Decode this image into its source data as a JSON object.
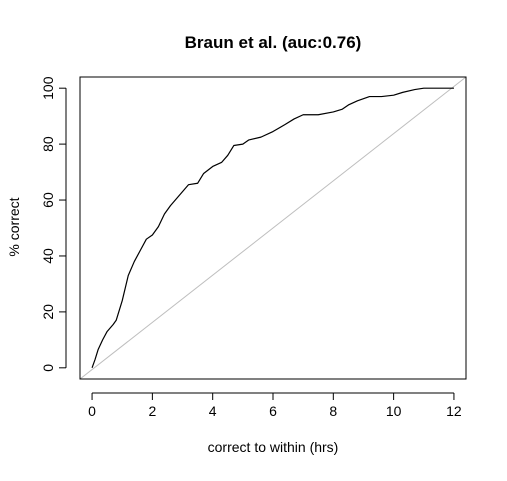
{
  "chart_data": {
    "type": "line",
    "title": "Braun et al. (auc:0.76)",
    "xlabel": "correct to within (hrs)",
    "ylabel": "% correct",
    "xlim": [
      -0.4,
      12.4
    ],
    "ylim": [
      -4,
      104
    ],
    "xticks": [
      0,
      2,
      4,
      6,
      8,
      10,
      12
    ],
    "yticks": [
      0,
      20,
      40,
      60,
      80,
      100
    ],
    "grid": false,
    "series": [
      {
        "style": "solid",
        "color": "#000000",
        "points": [
          [
            0.0,
            0.0
          ],
          [
            0.1,
            3.0
          ],
          [
            0.2,
            6.5
          ],
          [
            0.35,
            10.0
          ],
          [
            0.5,
            13.0
          ],
          [
            0.7,
            15.5
          ],
          [
            0.8,
            17.0
          ],
          [
            1.0,
            24.0
          ],
          [
            1.2,
            33.0
          ],
          [
            1.4,
            38.0
          ],
          [
            1.6,
            42.0
          ],
          [
            1.8,
            46.0
          ],
          [
            2.0,
            47.5
          ],
          [
            2.2,
            50.5
          ],
          [
            2.4,
            55.0
          ],
          [
            2.6,
            58.0
          ],
          [
            2.8,
            60.5
          ],
          [
            3.0,
            63.0
          ],
          [
            3.2,
            65.5
          ],
          [
            3.5,
            66.0
          ],
          [
            3.7,
            69.5
          ],
          [
            4.0,
            72.0
          ],
          [
            4.3,
            73.5
          ],
          [
            4.5,
            76.0
          ],
          [
            4.7,
            79.5
          ],
          [
            5.0,
            80.0
          ],
          [
            5.2,
            81.5
          ],
          [
            5.6,
            82.5
          ],
          [
            6.0,
            84.5
          ],
          [
            6.4,
            87.0
          ],
          [
            6.7,
            89.0
          ],
          [
            7.0,
            90.5
          ],
          [
            7.5,
            90.5
          ],
          [
            8.0,
            91.5
          ],
          [
            8.3,
            92.5
          ],
          [
            8.5,
            94.0
          ],
          [
            8.8,
            95.5
          ],
          [
            9.2,
            97.0
          ],
          [
            9.6,
            97.0
          ],
          [
            10.0,
            97.5
          ],
          [
            10.3,
            98.5
          ],
          [
            10.7,
            99.5
          ],
          [
            11.0,
            100.0
          ],
          [
            12.0,
            100.0
          ]
        ]
      },
      {
        "style": "reference-diagonal",
        "color": "#bebebe",
        "points": [
          [
            -0.4,
            -4.0
          ],
          [
            12.4,
            104.0
          ]
        ]
      }
    ]
  }
}
